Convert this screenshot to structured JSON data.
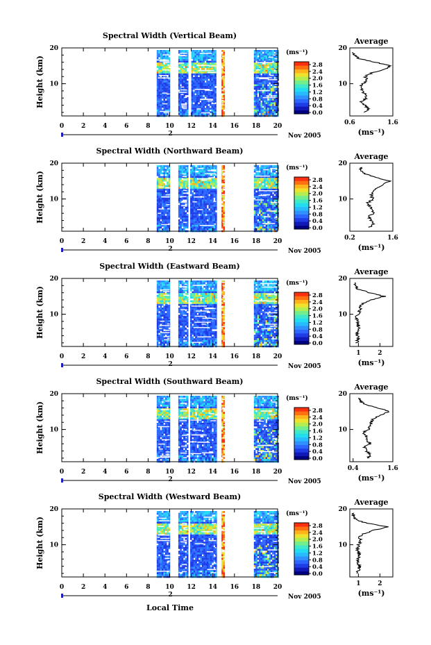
{
  "colors": {
    "scale": [
      "#000080",
      "#1018b8",
      "#1f3ce6",
      "#2a66ff",
      "#2f90ff",
      "#28bcff",
      "#22dcef",
      "#3ee8c8",
      "#72ee8e",
      "#b2ee52",
      "#eee22c",
      "#ffb41c",
      "#ff7010",
      "#ff3010"
    ],
    "gap": "#ffffff",
    "line": "#000000"
  },
  "colorbar_unit": "(ms⁻¹)",
  "colorbar_ticks": [
    "2.8",
    "2.4",
    "2.0",
    "1.6",
    "1.2",
    "0.8",
    "0.4",
    "0.0"
  ],
  "date_label": "Nov 2005",
  "day_marker": "2",
  "xlabel_main": "Local Time",
  "ylabel": "Height (km)",
  "avg_title": "Average",
  "avg_xlabel": "(ms⁻¹)",
  "chart_data": [
    {
      "type": "heatmap",
      "title": "Spectral Width (Vertical Beam)",
      "beam": "vertical",
      "x_label": "Local Time",
      "y_label": "Height (km)",
      "x_range": [
        0,
        20
      ],
      "x_ticks": [
        "0",
        "2",
        "4",
        "6",
        "8",
        "10",
        "12",
        "14",
        "16",
        "18",
        "20"
      ],
      "y_range": [
        1,
        20
      ],
      "y_ticks": [
        "20",
        "10"
      ],
      "colorbar": {
        "label": "(ms⁻¹)",
        "range": [
          0.0,
          2.8
        ],
        "ticks": [
          "2.8",
          "2.4",
          "2.0",
          "1.6",
          "1.2",
          "0.8",
          "0.4",
          "0.0"
        ]
      },
      "data_intervals_h": [
        [
          8.8,
          10.0
        ],
        [
          10.8,
          11.6
        ],
        [
          12.0,
          14.3
        ],
        [
          14.8,
          15.0
        ],
        [
          17.8,
          20.0
        ]
      ],
      "average_profile": {
        "title": "Average",
        "x_label": "(ms⁻¹)",
        "x_range": [
          0.6,
          1.6
        ],
        "x_ticks": [
          "0.6",
          "1.6"
        ],
        "y_ticks": [
          "20",
          "10"
        ],
        "height_km": [
          2,
          3,
          4,
          5,
          6,
          7,
          8,
          9,
          10,
          11,
          12,
          13,
          14,
          15,
          16,
          17,
          18,
          19
        ],
        "width_ms": [
          0.95,
          1.05,
          0.95,
          0.85,
          1.0,
          0.95,
          0.9,
          0.85,
          0.9,
          1.0,
          0.95,
          1.1,
          1.4,
          1.55,
          1.2,
          0.8,
          0.7,
          0.65
        ]
      }
    },
    {
      "type": "heatmap",
      "title": "Spectral Width (Northward Beam)",
      "beam": "northward",
      "x_label": "Local Time",
      "y_label": "Height (km)",
      "x_range": [
        0,
        20
      ],
      "x_ticks": [
        "0",
        "2",
        "4",
        "6",
        "8",
        "10",
        "12",
        "14",
        "16",
        "18",
        "20"
      ],
      "y_range": [
        1,
        20
      ],
      "y_ticks": [
        "20",
        "10"
      ],
      "colorbar": {
        "label": "(ms⁻¹)",
        "range": [
          0.0,
          2.8
        ],
        "ticks": [
          "2.8",
          "2.4",
          "2.0",
          "1.6",
          "1.2",
          "0.8",
          "0.4",
          "0.0"
        ]
      },
      "data_intervals_h": [
        [
          8.8,
          10.0
        ],
        [
          10.8,
          11.6
        ],
        [
          11.9,
          14.3
        ],
        [
          14.8,
          15.1
        ],
        [
          17.8,
          20.0
        ]
      ],
      "average_profile": {
        "title": "Average",
        "x_label": "(ms⁻¹)",
        "x_range": [
          0.2,
          1.6
        ],
        "x_ticks": [
          "0.2",
          "1.6"
        ],
        "y_ticks": [
          "20",
          "10"
        ],
        "height_km": [
          2,
          3,
          4,
          5,
          6,
          7,
          8,
          9,
          10,
          11,
          12,
          13,
          14,
          15,
          16,
          17,
          18,
          19
        ],
        "width_ms": [
          0.85,
          0.95,
          0.9,
          0.8,
          0.95,
          0.9,
          0.85,
          0.8,
          0.95,
          0.9,
          1.0,
          1.05,
          1.3,
          1.5,
          1.1,
          0.7,
          0.55,
          0.6
        ]
      }
    },
    {
      "type": "heatmap",
      "title": "Spectral Width (Eastward Beam)",
      "beam": "eastward",
      "x_label": "Local Time",
      "y_label": "Height (km)",
      "x_range": [
        0,
        20
      ],
      "x_ticks": [
        "0",
        "2",
        "4",
        "6",
        "8",
        "10",
        "12",
        "14",
        "16",
        "18",
        "20"
      ],
      "y_range": [
        1,
        20
      ],
      "y_ticks": [
        "20",
        "10"
      ],
      "colorbar": {
        "label": "(ms⁻¹)",
        "range": [
          0.0,
          2.8
        ],
        "ticks": [
          "2.8",
          "2.4",
          "2.0",
          "1.6",
          "1.2",
          "0.8",
          "0.4",
          "0.0"
        ]
      },
      "data_intervals_h": [
        [
          8.8,
          10.0
        ],
        [
          10.8,
          11.6
        ],
        [
          11.9,
          14.3
        ],
        [
          14.8,
          15.1
        ],
        [
          17.8,
          20.0
        ]
      ],
      "average_profile": {
        "title": "Average",
        "x_label": "(ms⁻¹)",
        "x_range": [
          0.6,
          2.6
        ],
        "x_ticks": [
          "1",
          "2"
        ],
        "y_ticks": [
          "20",
          "10"
        ],
        "height_km": [
          2,
          3,
          4,
          5,
          6,
          7,
          8,
          9,
          10,
          11,
          12,
          13,
          14,
          15,
          16,
          17,
          18,
          19
        ],
        "width_ms": [
          0.9,
          1.0,
          0.95,
          0.9,
          1.05,
          1.0,
          0.95,
          0.9,
          1.0,
          1.05,
          1.1,
          1.2,
          1.6,
          2.2,
          1.5,
          1.0,
          0.85,
          0.8
        ]
      }
    },
    {
      "type": "heatmap",
      "title": "Spectral Width (Southward Beam)",
      "beam": "southward",
      "x_label": "Local Time",
      "y_label": "Height (km)",
      "x_range": [
        0,
        20
      ],
      "x_ticks": [
        "0",
        "2",
        "4",
        "6",
        "8",
        "10",
        "12",
        "14",
        "16",
        "18",
        "20"
      ],
      "y_range": [
        1,
        20
      ],
      "y_ticks": [
        "20",
        "10"
      ],
      "colorbar": {
        "label": "(ms⁻¹)",
        "range": [
          0.0,
          2.8
        ],
        "ticks": [
          "2.8",
          "2.4",
          "2.0",
          "1.6",
          "1.2",
          "0.8",
          "0.4",
          "0.0"
        ]
      },
      "data_intervals_h": [
        [
          8.8,
          10.0
        ],
        [
          10.8,
          11.6
        ],
        [
          11.9,
          14.3
        ],
        [
          14.8,
          15.1
        ],
        [
          17.8,
          20.0
        ]
      ],
      "average_profile": {
        "title": "Average",
        "x_label": "(ms⁻¹)",
        "x_range": [
          0.3,
          1.6
        ],
        "x_ticks": [
          "0.4",
          "1.6"
        ],
        "y_ticks": [
          "20",
          "10"
        ],
        "height_km": [
          2,
          3,
          4,
          5,
          6,
          7,
          8,
          9,
          10,
          11,
          12,
          13,
          14,
          15,
          16,
          17,
          18,
          19
        ],
        "width_ms": [
          0.85,
          0.9,
          0.8,
          0.75,
          0.9,
          0.85,
          0.8,
          0.7,
          0.85,
          0.9,
          0.95,
          1.0,
          1.25,
          1.5,
          1.15,
          0.75,
          0.6,
          0.55
        ]
      }
    },
    {
      "type": "heatmap",
      "title": "Spectral Width (Westward Beam)",
      "beam": "westward",
      "x_label": "Local Time",
      "y_label": "Height (km)",
      "x_range": [
        0,
        20
      ],
      "x_ticks": [
        "0",
        "2",
        "4",
        "6",
        "8",
        "10",
        "12",
        "14",
        "16",
        "18",
        "20"
      ],
      "y_range": [
        1,
        20
      ],
      "y_ticks": [
        "20",
        "10"
      ],
      "colorbar": {
        "label": "(ms⁻¹)",
        "range": [
          0.0,
          2.8
        ],
        "ticks": [
          "2.8",
          "2.4",
          "2.0",
          "1.6",
          "1.2",
          "0.8",
          "0.4",
          "0.0"
        ]
      },
      "data_intervals_h": [
        [
          8.8,
          10.0
        ],
        [
          10.8,
          11.6
        ],
        [
          11.9,
          14.3
        ],
        [
          14.8,
          15.1
        ],
        [
          17.8,
          20.0
        ]
      ],
      "average_profile": {
        "title": "Average",
        "x_label": "(ms⁻¹)",
        "x_range": [
          0.6,
          2.6
        ],
        "x_ticks": [
          "1",
          "2"
        ],
        "y_ticks": [
          "20",
          "10"
        ],
        "height_km": [
          2,
          3,
          4,
          5,
          6,
          7,
          8,
          9,
          10,
          11,
          12,
          13,
          14,
          15,
          16,
          17,
          18,
          19
        ],
        "width_ms": [
          0.95,
          1.0,
          1.05,
          0.95,
          1.0,
          1.05,
          1.0,
          0.95,
          1.0,
          1.1,
          1.05,
          1.2,
          1.7,
          2.4,
          1.4,
          0.9,
          0.8,
          0.75
        ]
      }
    }
  ]
}
